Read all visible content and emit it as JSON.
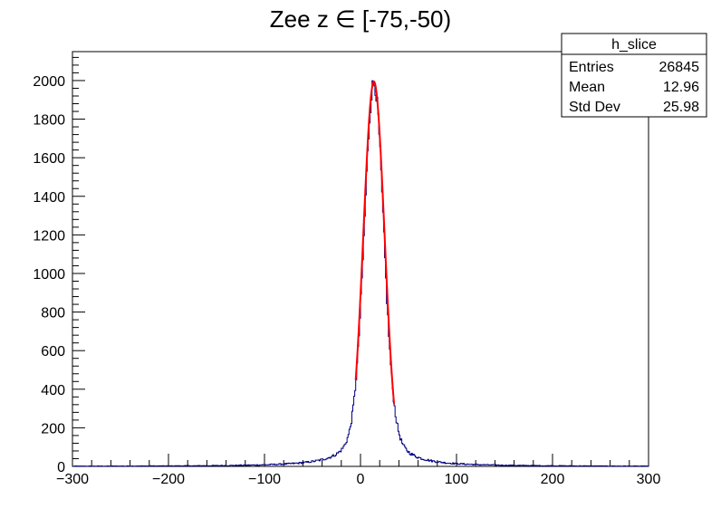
{
  "chart_data": {
    "type": "histogram",
    "title": "Zee z ∈ [-75,-50)",
    "xlabel": "",
    "ylabel": "",
    "xlim": [
      -300,
      300
    ],
    "ylim": [
      0,
      2150
    ],
    "x_ticks": [
      -300,
      -200,
      -100,
      0,
      100,
      200,
      300
    ],
    "y_ticks": [
      0,
      200,
      400,
      600,
      800,
      1000,
      1200,
      1400,
      1600,
      1800,
      2000
    ],
    "x_tick_labels": [
      "−300",
      "−200",
      "−100",
      "0",
      "100",
      "200",
      "300"
    ],
    "y_tick_labels": [
      "0",
      "200",
      "400",
      "600",
      "800",
      "1000",
      "1200",
      "1400",
      "1600",
      "1800",
      "2000"
    ],
    "grid": false,
    "histogram": {
      "name": "h_slice",
      "color": "#000080",
      "bin_width": 1,
      "peak": {
        "mean": 14,
        "height": 1990,
        "core_sigma": 10,
        "tail_gamma": 14
      }
    },
    "fit": {
      "type": "gaussian",
      "color": "#ff0000",
      "constant": 1995,
      "mean": 14,
      "sigma": 11,
      "range": [
        -5,
        35
      ]
    },
    "stats_box": {
      "title": "h_slice",
      "rows": [
        {
          "label": "Entries",
          "value": "26845"
        },
        {
          "label": "Mean",
          "value": "12.96"
        },
        {
          "label": "Std Dev",
          "value": "25.98"
        }
      ],
      "placement": "top-right"
    }
  }
}
